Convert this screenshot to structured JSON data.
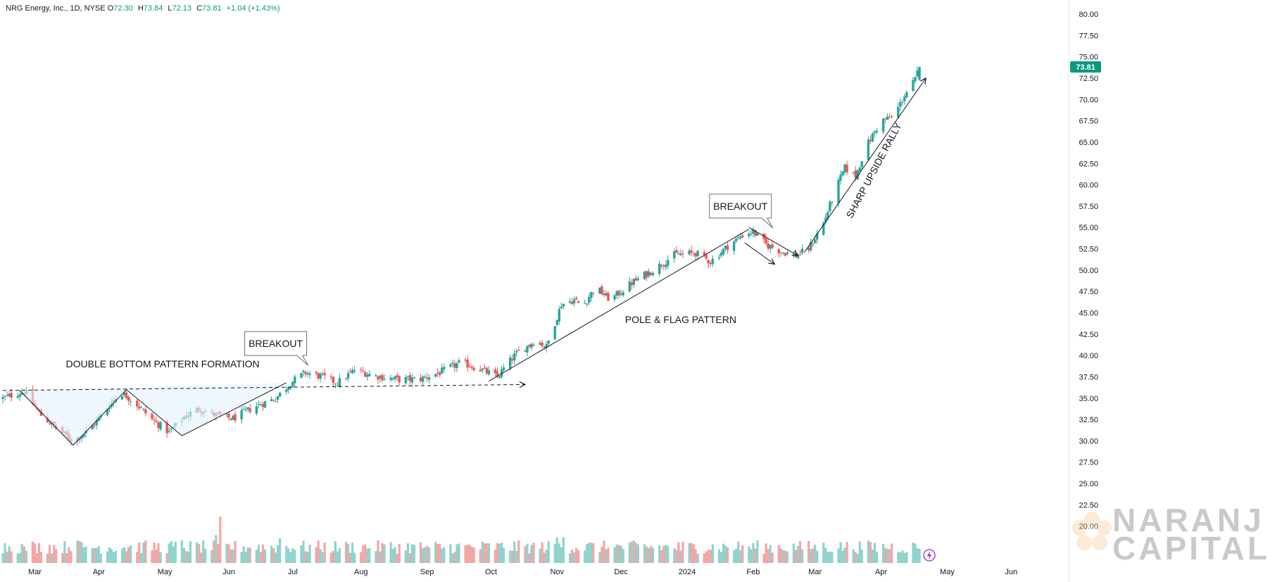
{
  "legend": {
    "symbol": "NRG Energy, Inc., 1D, NYSE",
    "open_label": "O",
    "open": "72.30",
    "high_label": "H",
    "high": "73.84",
    "low_label": "L",
    "low": "72.13",
    "close_label": "C",
    "close": "73.81",
    "change": "+1.04 (+1.43%)"
  },
  "colors": {
    "up": "#26a69a",
    "down": "#ef5350",
    "vol_up": "#8fd3cc",
    "vol_down": "#f4a5a5",
    "axis_text": "#131722",
    "price_tag": "#089981"
  },
  "brand": {
    "line1": "NARANJ",
    "line2": "CAPITAL"
  },
  "chart_data": {
    "type": "candlestick",
    "title": "NRG Energy, Inc., 1D, NYSE",
    "y_axis": {
      "min": 17.5,
      "max": 80.5,
      "ticks": [
        "80.00",
        "77.50",
        "75.00",
        "72.50",
        "70.00",
        "67.50",
        "65.00",
        "62.50",
        "60.00",
        "57.50",
        "55.00",
        "52.50",
        "50.00",
        "47.50",
        "45.00",
        "42.50",
        "40.00",
        "37.50",
        "35.00",
        "32.50",
        "30.00",
        "27.50",
        "25.00",
        "22.50",
        "20.00"
      ]
    },
    "x_axis": {
      "labels": [
        "Mar",
        "Apr",
        "May",
        "Jun",
        "Jul",
        "Aug",
        "Sep",
        "Oct",
        "Nov",
        "Dec",
        "2024",
        "Feb",
        "Mar",
        "Apr",
        "May",
        "Jun"
      ],
      "label_days": [
        15,
        45,
        76,
        106,
        136,
        168,
        199,
        229,
        260,
        290,
        321,
        352,
        381,
        412,
        443,
        473
      ],
      "day_range": [
        0,
        500
      ]
    },
    "last_price": "73.81",
    "price_path": [
      [
        0,
        35.0
      ],
      [
        10,
        35.8
      ],
      [
        18,
        33.0
      ],
      [
        25,
        31.5
      ],
      [
        33,
        30.0
      ],
      [
        40,
        31.2
      ],
      [
        48,
        33.5
      ],
      [
        55,
        35.8
      ],
      [
        62,
        34.5
      ],
      [
        70,
        32.5
      ],
      [
        78,
        31.0
      ],
      [
        85,
        32.8
      ],
      [
        92,
        33.8
      ],
      [
        100,
        33.0
      ],
      [
        108,
        32.6
      ],
      [
        118,
        34.0
      ],
      [
        128,
        35.0
      ],
      [
        136,
        37.0
      ],
      [
        142,
        38.0
      ],
      [
        150,
        37.5
      ],
      [
        157,
        36.8
      ],
      [
        165,
        38.3
      ],
      [
        175,
        37.6
      ],
      [
        185,
        37.2
      ],
      [
        195,
        37.2
      ],
      [
        205,
        38.0
      ],
      [
        215,
        39.2
      ],
      [
        225,
        38.3
      ],
      [
        232,
        37.5
      ],
      [
        240,
        40.0
      ],
      [
        250,
        41.8
      ],
      [
        255,
        41.0
      ],
      [
        262,
        46.0
      ],
      [
        268,
        46.5
      ],
      [
        272,
        45.8
      ],
      [
        278,
        48.0
      ],
      [
        285,
        46.5
      ],
      [
        295,
        48.5
      ],
      [
        305,
        50.0
      ],
      [
        315,
        51.8
      ],
      [
        325,
        52.0
      ],
      [
        332,
        51.0
      ],
      [
        340,
        52.8
      ],
      [
        348,
        54.3
      ],
      [
        352,
        54.5
      ],
      [
        358,
        53.0
      ],
      [
        365,
        52.2
      ],
      [
        372,
        51.7
      ],
      [
        378,
        52.5
      ],
      [
        385,
        55.5
      ],
      [
        390,
        59.0
      ],
      [
        395,
        62.0
      ],
      [
        400,
        61.0
      ],
      [
        405,
        64.5
      ],
      [
        412,
        67.5
      ],
      [
        418,
        68.0
      ],
      [
        423,
        70.5
      ],
      [
        428,
        72.3
      ],
      [
        430,
        73.8
      ]
    ],
    "volume_spikes": [
      [
        10,
        3.2
      ],
      [
        35,
        4.4
      ],
      [
        38,
        3.0
      ],
      [
        62,
        2.6
      ],
      [
        84,
        4.4
      ],
      [
        100,
        5.4
      ],
      [
        102,
        9.0
      ],
      [
        125,
        5.0
      ],
      [
        130,
        4.8
      ],
      [
        131,
        4.0
      ],
      [
        200,
        3.0
      ],
      [
        250,
        3.2
      ],
      [
        260,
        4.9
      ],
      [
        263,
        5.0
      ],
      [
        287,
        3.1
      ],
      [
        318,
        2.4
      ],
      [
        342,
        3.4
      ],
      [
        377,
        3.7
      ],
      [
        383,
        10.3
      ],
      [
        391,
        3.0
      ]
    ],
    "volume_axis_max": 30,
    "annotations": [
      {
        "type": "text",
        "text": "DOUBLE BOTTOM PATTERN FORMATION",
        "at_day": 75,
        "at_price": 38.6
      },
      {
        "type": "callout",
        "text": "BREAKOUT",
        "at_day": 128,
        "at_price": 41.4
      },
      {
        "type": "text",
        "text": "POLE & FLAG PATTERN",
        "at_day": 318,
        "at_price": 43.8
      },
      {
        "type": "callout",
        "text": "BREAKOUT",
        "at_day": 346,
        "at_price": 57.5
      },
      {
        "type": "text",
        "text": "SHARP UPSIDE RALLY",
        "at_day": 410,
        "at_price": 61.5,
        "rotate": -62
      }
    ],
    "trendlines": {
      "resistance_dashed": [
        [
          0,
          35.9
        ],
        [
          245,
          36.6
        ]
      ],
      "double_bottom": [
        [
          8,
          35.9
        ],
        [
          33,
          29.5
        ],
        [
          58,
          36.0
        ],
        [
          84,
          30.6
        ],
        [
          133,
          36.8
        ]
      ],
      "pole": [
        [
          228,
          37.0
        ],
        [
          350,
          54.8
        ]
      ],
      "flag_upper": [
        [
          350,
          55.0
        ],
        [
          373,
          51.7
        ]
      ],
      "flag_lower": [
        [
          348,
          53.2
        ],
        [
          362,
          50.7
        ]
      ],
      "rally": [
        [
          376,
          52.1
        ],
        [
          433,
          72.5
        ]
      ]
    }
  }
}
